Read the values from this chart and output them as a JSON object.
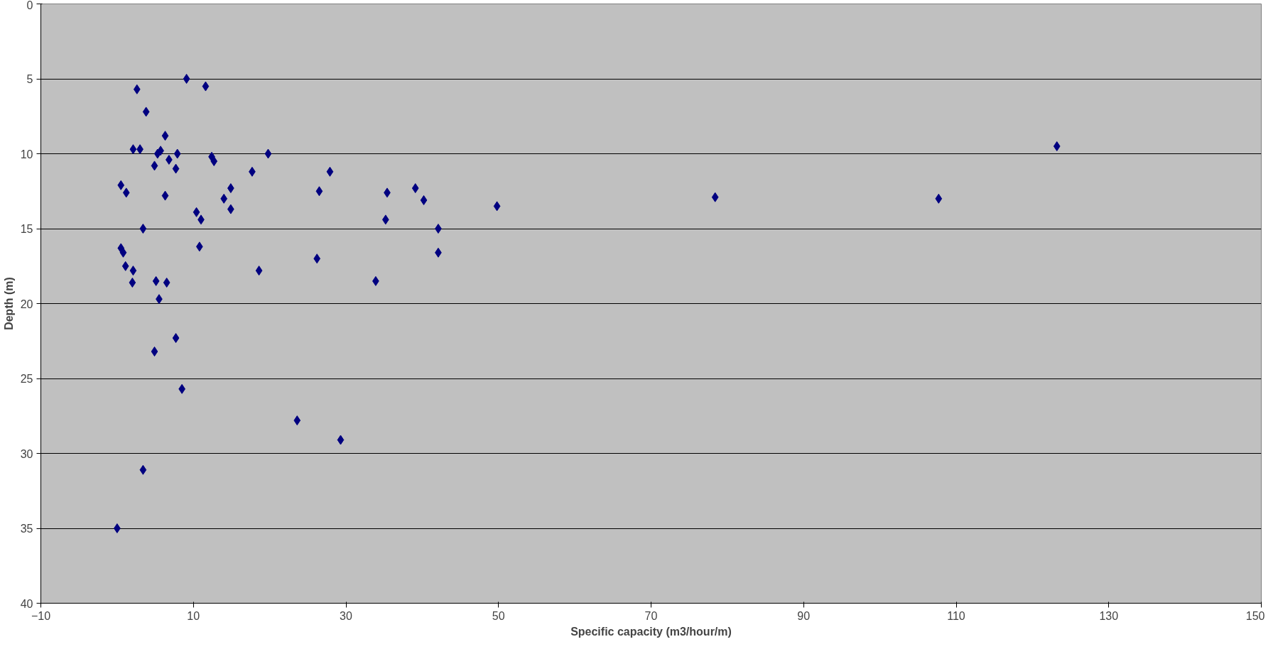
{
  "chart_data": {
    "type": "scatter",
    "xlabel": "Specific capacity (m3/hour/m)",
    "ylabel": "Depth (m)",
    "xlim": [
      -10,
      150
    ],
    "xticks": [
      -10,
      10,
      30,
      50,
      70,
      90,
      110,
      130,
      150
    ],
    "ylim": [
      40,
      0
    ],
    "yticks": [
      0,
      5,
      10,
      15,
      20,
      25,
      30,
      35,
      40
    ],
    "grid": "y",
    "marker": "diamond",
    "series": [
      {
        "color": "#000080",
        "x": [
          9.1,
          11.6,
          2.6,
          3.8,
          6.3,
          2.1,
          3.0,
          5.3,
          5.7,
          7.9,
          6.8,
          4.9,
          7.7,
          12.4,
          12.7,
          19.8,
          0.5,
          1.2,
          6.3,
          14.9,
          14.0,
          14.9,
          10.4,
          11.0,
          3.4,
          17.7,
          10.8,
          0.5,
          0.8,
          1.1,
          2.1,
          2.0,
          5.1,
          6.5,
          5.5,
          7.7,
          4.9,
          8.5,
          18.6,
          3.4,
          0,
          23.6,
          29.3,
          26.2,
          26.5,
          27.9,
          35.4,
          35.2,
          33.9,
          39.1,
          40.2,
          42.1,
          42.1,
          49.8,
          78.4,
          107.7,
          123.2
        ],
        "values": [
          5.0,
          5.5,
          5.7,
          7.2,
          8.8,
          9.7,
          9.7,
          10.0,
          9.8,
          10.0,
          10.4,
          10.8,
          11.0,
          10.2,
          10.5,
          10.0,
          12.1,
          12.6,
          12.8,
          12.3,
          13.0,
          13.7,
          13.9,
          14.4,
          15.0,
          11.2,
          16.2,
          16.3,
          16.6,
          17.5,
          17.8,
          18.6,
          18.5,
          18.6,
          19.7,
          22.3,
          23.2,
          25.7,
          17.8,
          31.1,
          35.0,
          27.8,
          29.1,
          17.0,
          12.5,
          11.2,
          12.6,
          14.4,
          18.5,
          12.3,
          13.1,
          15.0,
          16.6,
          13.5,
          12.9,
          13.0,
          9.5
        ]
      }
    ]
  }
}
